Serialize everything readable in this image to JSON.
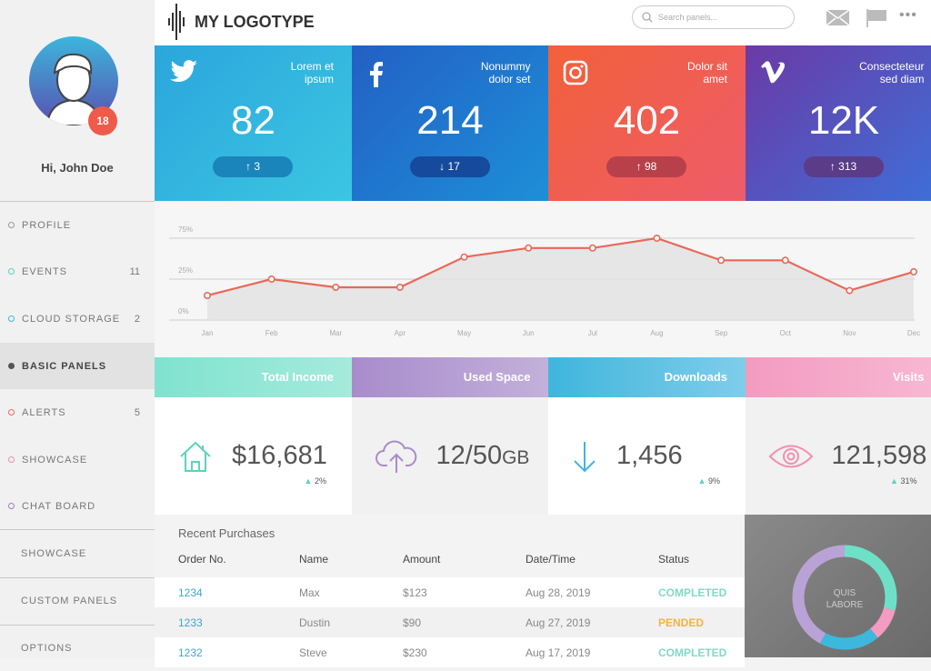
{
  "user": {
    "greeting": "Hi, John Doe",
    "notifications": "18"
  },
  "sidebar": {
    "items": [
      {
        "label": "PROFILE",
        "count": "",
        "color": "#999999"
      },
      {
        "label": "EVENTS",
        "count": "11",
        "color": "#5bd3c0"
      },
      {
        "label": "CLOUD STORAGE",
        "count": "2",
        "color": "#3fb6dc"
      },
      {
        "label": "BASIC PANELS",
        "count": "",
        "color": "#555555"
      },
      {
        "label": "ALERTS",
        "count": "5",
        "color": "#ef6a5a"
      },
      {
        "label": "SHOWCASE",
        "count": "",
        "color": "#f08fb0"
      },
      {
        "label": "CHAT BOARD",
        "count": "",
        "color": "#9b7fc8"
      }
    ],
    "sections": [
      "SHOWCASE",
      "CUSTOM PANELS",
      "OPTIONS"
    ]
  },
  "header": {
    "logo": "MY LOGOTYPE",
    "search_placeholder": "Search panels..."
  },
  "tiles": [
    {
      "icon": "twitter",
      "label1": "Lorem et",
      "label2": "ipsum",
      "value": "82",
      "change": "↑ 3"
    },
    {
      "icon": "facebook",
      "label1": "Nonummy",
      "label2": "dolor set",
      "value": "214",
      "change": "↓ 17"
    },
    {
      "icon": "instagram",
      "label1": "Dolor sit",
      "label2": "amet",
      "value": "402",
      "change": "↑ 98"
    },
    {
      "icon": "vimeo",
      "label1": "Consecteteur",
      "label2": "sed diam",
      "value": "12K",
      "change": "↑ 313"
    }
  ],
  "chart_data": {
    "type": "area",
    "categories": [
      "Jan",
      "Feb",
      "Mar",
      "Apr",
      "May",
      "Jun",
      "Jul",
      "Aug",
      "Sep",
      "Oct",
      "Nov",
      "Dec"
    ],
    "values": [
      15,
      25,
      20,
      20,
      52,
      63,
      63,
      75,
      48,
      48,
      18,
      34
    ],
    "yticks": [
      "0%",
      "25%",
      "75%"
    ],
    "color": "#e8695a"
  },
  "stats": [
    {
      "title": "Total Income",
      "value": "$16,681",
      "change": "2%"
    },
    {
      "title": "Used Space",
      "value": "12/50",
      "unit": "GB"
    },
    {
      "title": "Downloads",
      "value": "1,456",
      "change": "9%"
    },
    {
      "title": "Visits",
      "value": "121,598",
      "change": "31%"
    }
  ],
  "purchases": {
    "title": "Recent Purchases",
    "columns": [
      "Order No.",
      "Name",
      "Amount",
      "Date/Time",
      "Status"
    ],
    "rows": [
      [
        "1234",
        "Max",
        "$123",
        "Aug 28, 2019",
        "COMPLETED"
      ],
      [
        "1233",
        "Dustin",
        "$90",
        "Aug 27, 2019",
        "PENDED"
      ],
      [
        "1232",
        "Steve",
        "$230",
        "Aug 17, 2019",
        "COMPLETED"
      ]
    ]
  },
  "donut": {
    "label1": "QUIS",
    "label2": "LABORE"
  }
}
